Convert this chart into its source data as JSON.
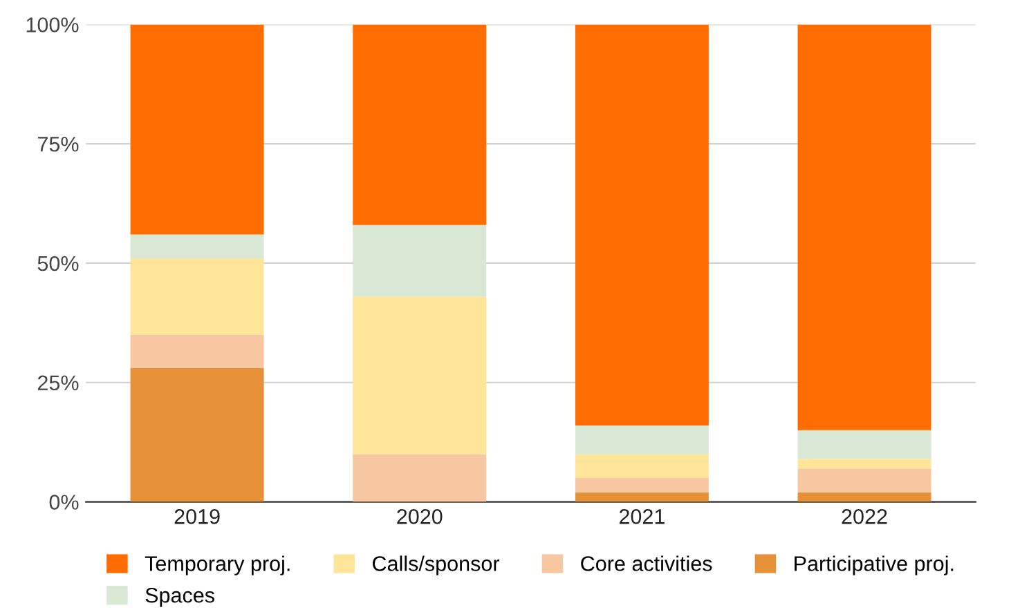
{
  "chart_data": {
    "type": "bar",
    "stacked": true,
    "categories": [
      "2019",
      "2020",
      "2021",
      "2022"
    ],
    "series": [
      {
        "name": "Participative proj.",
        "color": "#e69138",
        "values": [
          28,
          0,
          2,
          2
        ]
      },
      {
        "name": "Core activities",
        "color": "#f6c7a0",
        "values": [
          7,
          10,
          3,
          5
        ]
      },
      {
        "name": "Calls/sponsor",
        "color": "#ffe599",
        "values": [
          16,
          33,
          5,
          2
        ]
      },
      {
        "name": "Spaces",
        "color": "#d9e8d4",
        "values": [
          5,
          15,
          6,
          6
        ]
      },
      {
        "name": "Temporary proj.",
        "color": "#ff6d01",
        "values": [
          44,
          42,
          84,
          85
        ]
      }
    ],
    "ylim": [
      0,
      100
    ],
    "yticks": [
      {
        "value": 0,
        "label": "0%"
      },
      {
        "value": 25,
        "label": "25%"
      },
      {
        "value": 50,
        "label": "50%"
      },
      {
        "value": 75,
        "label": "75%"
      },
      {
        "value": 100,
        "label": "100%"
      }
    ],
    "grid": "y",
    "legend": "bottom"
  }
}
